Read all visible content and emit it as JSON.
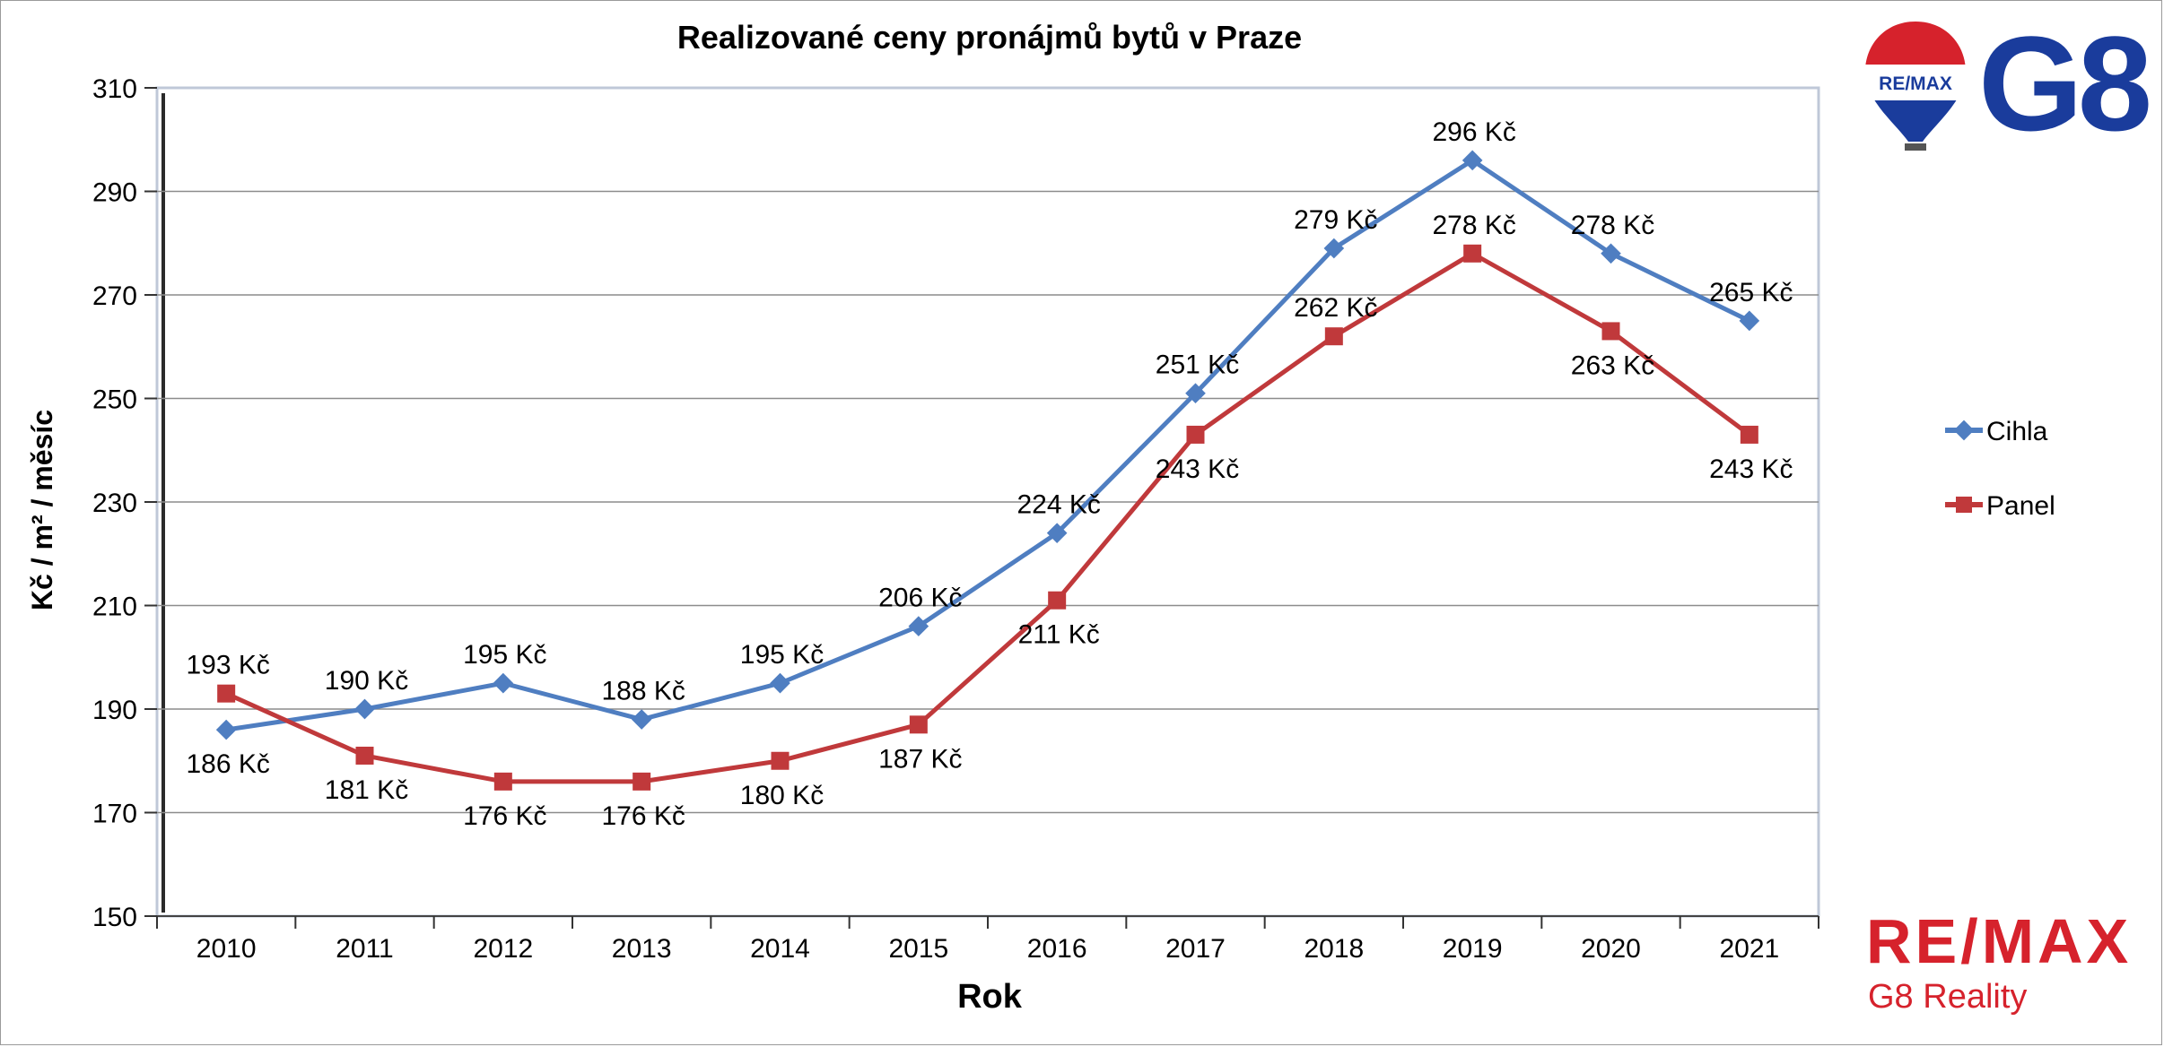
{
  "chart_data": {
    "type": "line",
    "title": "Realizované ceny pronájmů bytů v Praze",
    "xlabel": "Rok",
    "ylabel": "Kč / m² / měsíc",
    "categories": [
      "2010",
      "2011",
      "2012",
      "2013",
      "2014",
      "2015",
      "2016",
      "2017",
      "2018",
      "2019",
      "2020",
      "2021"
    ],
    "ylim": [
      150,
      310
    ],
    "yticks": [
      "150",
      "170",
      "190",
      "210",
      "230",
      "250",
      "270",
      "290",
      "310"
    ],
    "grid": true,
    "legend_position": "right",
    "series": [
      {
        "name": "Cihla",
        "color": "#4f7ec1",
        "marker": "diamond",
        "values": [
          186,
          190,
          195,
          188,
          195,
          206,
          224,
          251,
          279,
          296,
          278,
          265
        ],
        "labels": [
          "186 Kč",
          "190 Kč",
          "195 Kč",
          "188 Kč",
          "195 Kč",
          "206 Kč",
          "224 Kč",
          "251 Kč",
          "279 Kč",
          "296 Kč",
          "278 Kč",
          "265 Kč"
        ]
      },
      {
        "name": "Panel",
        "color": "#c0393b",
        "marker": "square",
        "values": [
          193,
          181,
          176,
          176,
          180,
          187,
          211,
          243,
          262,
          278,
          263,
          243
        ],
        "labels": [
          "193 Kč",
          "181 Kč",
          "176 Kč",
          "176 Kč",
          "180 Kč",
          "187 Kč",
          "211 Kč",
          "243 Kč",
          "262 Kč",
          "278 Kč",
          "263 Kč",
          "243 Kč"
        ]
      }
    ]
  },
  "logos": {
    "balloon_text": "RE/MAX",
    "g8_text": "G8",
    "brand_text": "RE/MAX",
    "brand_subtitle": "G8 Reality",
    "brand_color": "#d6222c",
    "g8_color": "#1a3c9c"
  }
}
